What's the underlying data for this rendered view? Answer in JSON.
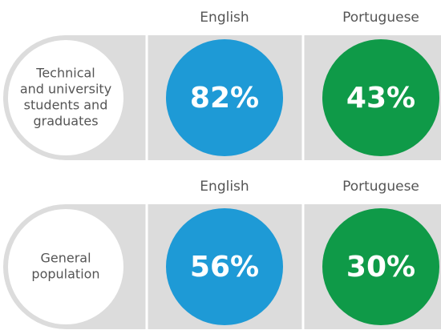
{
  "groups": [
    {
      "label_lines": [
        "Technical",
        "and university",
        "students and",
        "graduates"
      ],
      "items": [
        {
          "language": "English",
          "value": "82%",
          "color": "#1e9ad6"
        },
        {
          "language": "Portuguese",
          "value": "43%",
          "color": "#0f9a48"
        }
      ]
    },
    {
      "label_lines": [
        "General",
        "population"
      ],
      "items": [
        {
          "language": "English",
          "value": "56%",
          "color": "#1e9ad6"
        },
        {
          "language": "Portuguese",
          "value": "30%",
          "color": "#0f9a48"
        }
      ]
    }
  ]
}
